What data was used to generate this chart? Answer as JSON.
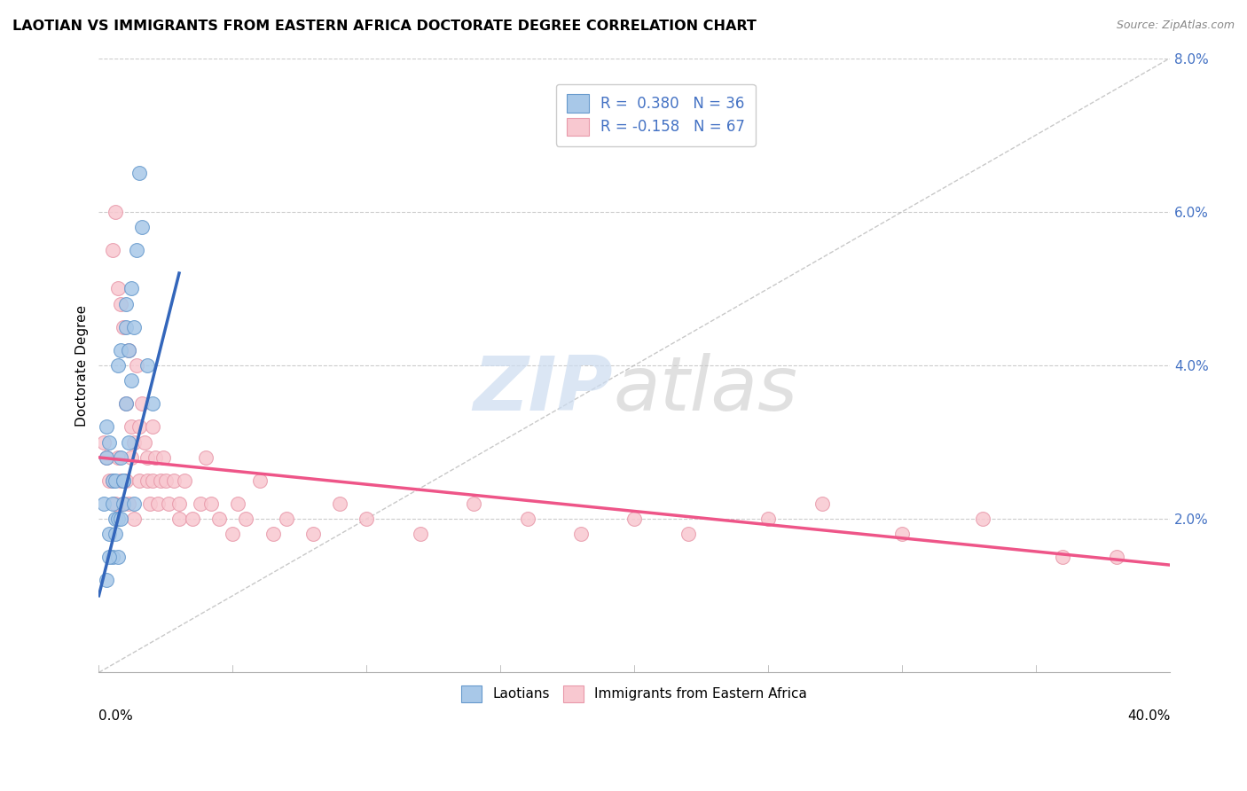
{
  "title": "LAOTIAN VS IMMIGRANTS FROM EASTERN AFRICA DOCTORATE DEGREE CORRELATION CHART",
  "source": "Source: ZipAtlas.com",
  "ylabel": "Doctorate Degree",
  "xlim": [
    0.0,
    40.0
  ],
  "ylim": [
    0.0,
    8.0
  ],
  "ytick_vals": [
    2.0,
    4.0,
    6.0,
    8.0
  ],
  "ytick_labels": [
    "2.0%",
    "4.0%",
    "6.0%",
    "8.0%"
  ],
  "legend1_label": "R =  0.380   N = 36",
  "legend2_label": "R = -0.158   N = 67",
  "bottom_legend1": "Laotians",
  "bottom_legend2": "Immigrants from Eastern Africa",
  "blue_dot_color": "#a8c8e8",
  "blue_edge_color": "#6699cc",
  "pink_dot_color": "#f8c8d0",
  "pink_edge_color": "#e899aa",
  "blue_line_color": "#3366bb",
  "pink_line_color": "#ee5588",
  "text_blue": "#4472c4",
  "grid_color": "#cccccc",
  "diag_color": "#bbbbbb",
  "blue_line_x0": 0.0,
  "blue_line_y0": 1.0,
  "blue_line_x1": 3.0,
  "blue_line_y1": 5.2,
  "pink_line_x0": 0.0,
  "pink_line_y0": 2.8,
  "pink_line_x1": 40.0,
  "pink_line_y1": 1.4,
  "blue_x": [
    0.3,
    0.5,
    0.2,
    0.4,
    0.6,
    0.3,
    0.4,
    0.5,
    0.7,
    0.6,
    0.8,
    0.5,
    0.7,
    0.9,
    0.6,
    0.8,
    1.0,
    0.7,
    0.9,
    1.1,
    0.8,
    1.0,
    1.2,
    0.9,
    1.1,
    1.3,
    1.0,
    1.2,
    1.4,
    1.5,
    1.3,
    1.6,
    1.8,
    2.0,
    0.4,
    0.3
  ],
  "blue_y": [
    2.8,
    2.5,
    2.2,
    1.8,
    2.0,
    3.2,
    3.0,
    2.2,
    4.0,
    2.5,
    4.2,
    1.5,
    2.0,
    2.5,
    1.8,
    2.8,
    3.5,
    1.5,
    2.2,
    3.0,
    2.0,
    4.5,
    3.8,
    2.5,
    4.2,
    4.5,
    4.8,
    5.0,
    5.5,
    6.5,
    2.2,
    5.8,
    4.0,
    3.5,
    1.5,
    1.2
  ],
  "pink_x": [
    0.2,
    0.3,
    0.4,
    0.5,
    0.5,
    0.6,
    0.6,
    0.7,
    0.7,
    0.8,
    0.8,
    0.9,
    0.9,
    1.0,
    1.0,
    1.1,
    1.1,
    1.2,
    1.2,
    1.3,
    1.3,
    1.4,
    1.5,
    1.5,
    1.6,
    1.7,
    1.8,
    1.8,
    1.9,
    2.0,
    2.0,
    2.1,
    2.2,
    2.3,
    2.4,
    2.5,
    2.6,
    2.8,
    3.0,
    3.0,
    3.2,
    3.5,
    3.8,
    4.0,
    4.2,
    4.5,
    5.0,
    5.2,
    5.5,
    6.0,
    6.5,
    7.0,
    8.0,
    9.0,
    10.0,
    12.0,
    14.0,
    16.0,
    18.0,
    20.0,
    22.0,
    25.0,
    27.0,
    30.0,
    33.0,
    36.0,
    38.0
  ],
  "pink_y": [
    3.0,
    2.8,
    2.5,
    5.5,
    2.5,
    6.0,
    2.2,
    5.0,
    2.8,
    4.8,
    2.5,
    4.5,
    2.2,
    3.5,
    2.5,
    4.2,
    2.2,
    3.2,
    2.8,
    3.0,
    2.0,
    4.0,
    3.2,
    2.5,
    3.5,
    3.0,
    2.8,
    2.5,
    2.2,
    3.2,
    2.5,
    2.8,
    2.2,
    2.5,
    2.8,
    2.5,
    2.2,
    2.5,
    2.2,
    2.0,
    2.5,
    2.0,
    2.2,
    2.8,
    2.2,
    2.0,
    1.8,
    2.2,
    2.0,
    2.5,
    1.8,
    2.0,
    1.8,
    2.2,
    2.0,
    1.8,
    2.2,
    2.0,
    1.8,
    2.0,
    1.8,
    2.0,
    2.2,
    1.8,
    2.0,
    1.5,
    1.5
  ]
}
